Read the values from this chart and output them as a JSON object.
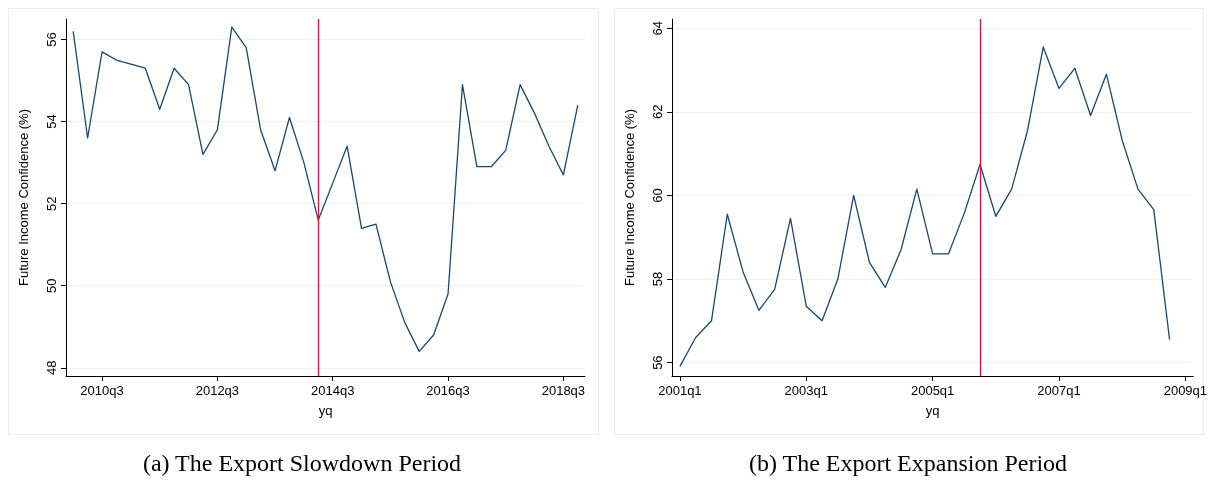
{
  "chart_data": [
    {
      "type": "line",
      "title": "(a) The Export Slowdown Period",
      "xlabel": "yq",
      "ylabel": "Future Income Confidence (%)",
      "categories": [
        null,
        null,
        "2010q3",
        null,
        null,
        null,
        null,
        null,
        null,
        null,
        "2012q3",
        null,
        null,
        null,
        null,
        null,
        null,
        null,
        "2014q3",
        null,
        null,
        null,
        null,
        null,
        null,
        null,
        "2016q3",
        null,
        null,
        null,
        null,
        null,
        null,
        null,
        "2018q3",
        null
      ],
      "series": [
        {
          "color": "#1a476f",
          "values": [
            56.2,
            53.6,
            55.7,
            55.5,
            55.4,
            55.3,
            54.3,
            55.3,
            54.9,
            53.2,
            53.8,
            56.3,
            55.8,
            53.8,
            52.8,
            54.1,
            53.0,
            51.6,
            52.5,
            53.4,
            51.4,
            51.5,
            50.1,
            49.1,
            48.4,
            48.8,
            49.8,
            54.9,
            52.9,
            52.9,
            53.3,
            54.9,
            54.2,
            53.4,
            52.7,
            54.4
          ]
        }
      ],
      "ylim": [
        47.8,
        56.5
      ],
      "yticks": [
        48,
        50,
        52,
        54,
        56
      ],
      "grid": "y"
    },
    {
      "type": "line",
      "title": "(b) The Export Expansion Period",
      "xlabel": "yq",
      "ylabel": "Future Income Confidence (%)",
      "categories": [
        "2001q1",
        null,
        null,
        null,
        null,
        null,
        null,
        null,
        "2003q1",
        null,
        null,
        null,
        null,
        null,
        null,
        null,
        "2005q1",
        null,
        null,
        null,
        null,
        null,
        null,
        null,
        "2007q1",
        null,
        null,
        null,
        null,
        null,
        null,
        null,
        "2009q1"
      ],
      "series": [
        {
          "color": "#1a476f",
          "values": [
            55.91,
            56.6,
            57.0,
            59.55,
            58.17,
            57.25,
            57.75,
            59.45,
            57.35,
            57.0,
            58.0,
            60.0,
            58.4,
            57.8,
            58.7,
            60.15,
            58.6,
            58.6,
            59.57,
            60.74,
            59.5,
            60.15,
            61.54,
            63.55,
            62.56,
            63.04,
            61.91,
            62.9,
            61.32,
            60.15,
            59.66,
            56.55,
            null
          ]
        }
      ],
      "ylim": [
        55.68,
        64.22
      ],
      "yticks": [
        56,
        58,
        60,
        62,
        64
      ],
      "grid": "y"
    }
  ]
}
